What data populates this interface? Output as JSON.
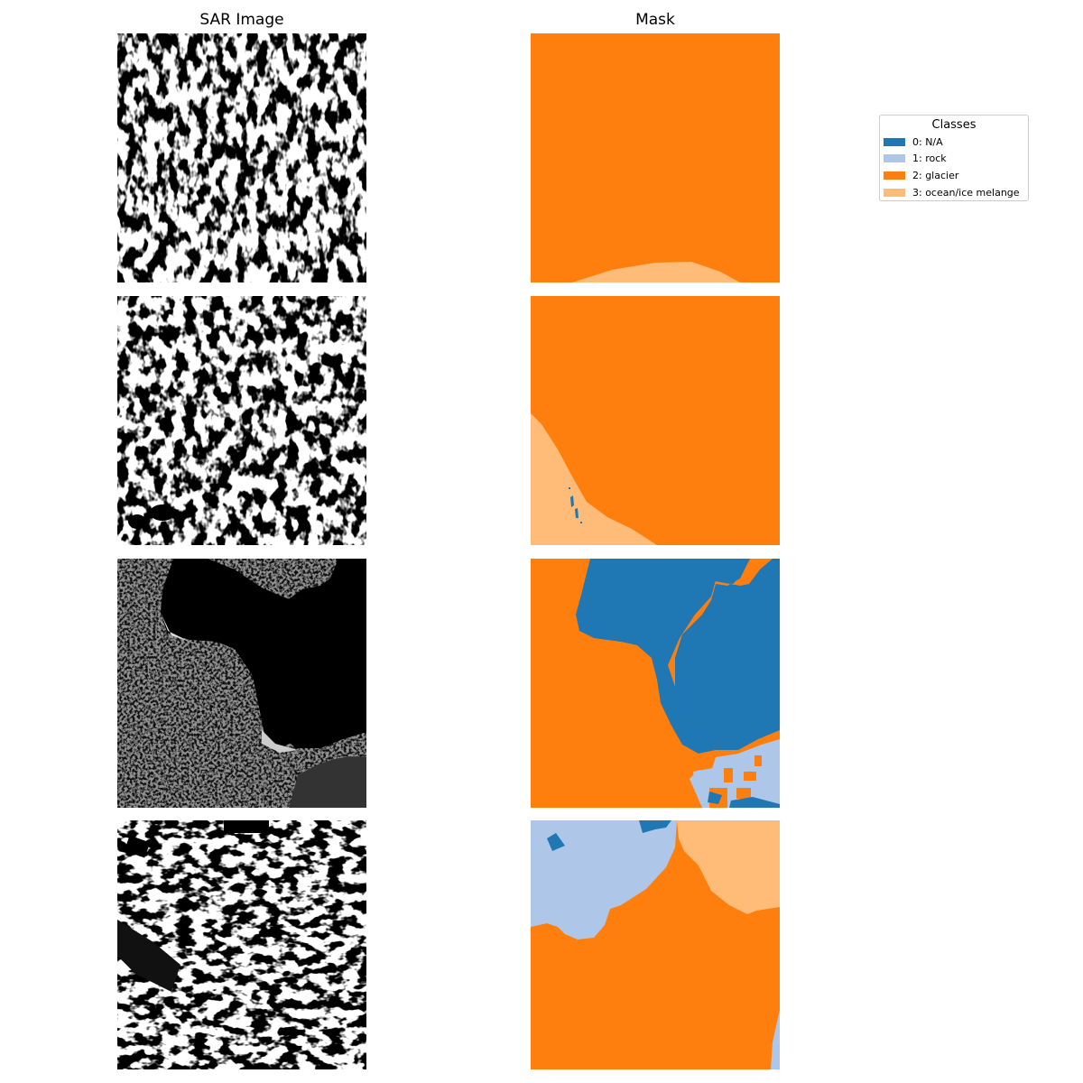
{
  "columns": {
    "left_title": "SAR Image",
    "right_title": "Mask"
  },
  "colors": {
    "na": "#1f77b4",
    "rock": "#aec7e8",
    "glacier": "#ff7f0e",
    "ocean": "#ffbb78"
  },
  "legend": {
    "title": "Classes",
    "items": [
      {
        "label": "0: N/A",
        "color": "#1f77b4"
      },
      {
        "label": "1: rock",
        "color": "#aec7e8"
      },
      {
        "label": "2: glacier",
        "color": "#ff7f0e"
      },
      {
        "label": "3: ocean/ice melange",
        "color": "#ffbb78"
      }
    ]
  }
}
